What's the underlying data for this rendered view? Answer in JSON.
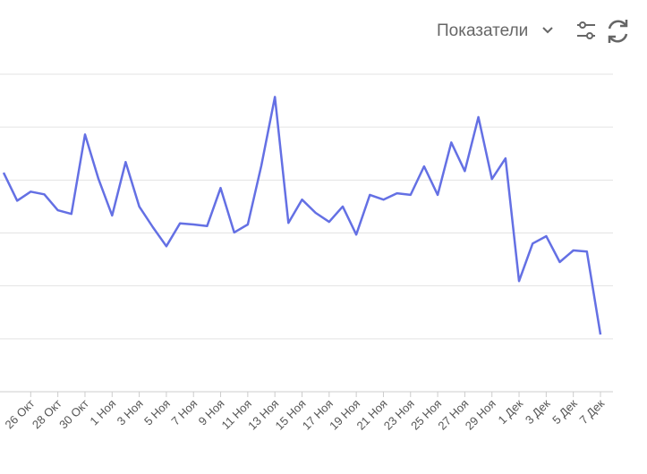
{
  "header": {
    "menu_label": "Показатели"
  },
  "chart_data": {
    "type": "line",
    "categories": [
      null,
      null,
      "26 Окт",
      null,
      "28 Окт",
      null,
      "30 Окт",
      null,
      "1 Ноя",
      null,
      "3 Ноя",
      null,
      "5 Ноя",
      null,
      "7 Ноя",
      null,
      "9 Ноя",
      null,
      "11 Ноя",
      null,
      "13 Ноя",
      null,
      "15 Ноя",
      null,
      "17 Ноя",
      null,
      "19 Ноя",
      null,
      "21 Ноя",
      null,
      "23 Ноя",
      null,
      "25 Ноя",
      null,
      "27 Ноя",
      null,
      "29 Ноя",
      null,
      "1 Дек",
      null,
      "3 Дек",
      null,
      "5 Дек",
      null,
      "7 Дек"
    ],
    "series": [
      {
        "color": "#6470e4",
        "values": [
          4.14,
          3.61,
          3.78,
          3.73,
          3.43,
          3.36,
          4.86,
          4.02,
          3.33,
          4.34,
          3.5,
          3.11,
          2.75,
          3.18,
          3.16,
          3.13,
          3.85,
          3.01,
          3.16,
          4.27,
          5.57,
          3.19,
          3.63,
          3.38,
          3.21,
          3.5,
          2.97,
          3.72,
          3.63,
          3.75,
          3.72,
          4.26,
          3.72,
          4.71,
          4.17,
          5.19,
          4.02,
          4.41,
          2.09,
          2.8,
          2.94,
          2.45,
          2.67,
          2.65,
          1.08
        ]
      }
    ],
    "ylim": [
      0,
      6
    ],
    "yticks": [
      0,
      1,
      2,
      3,
      4,
      5,
      6
    ],
    "grid": true
  }
}
